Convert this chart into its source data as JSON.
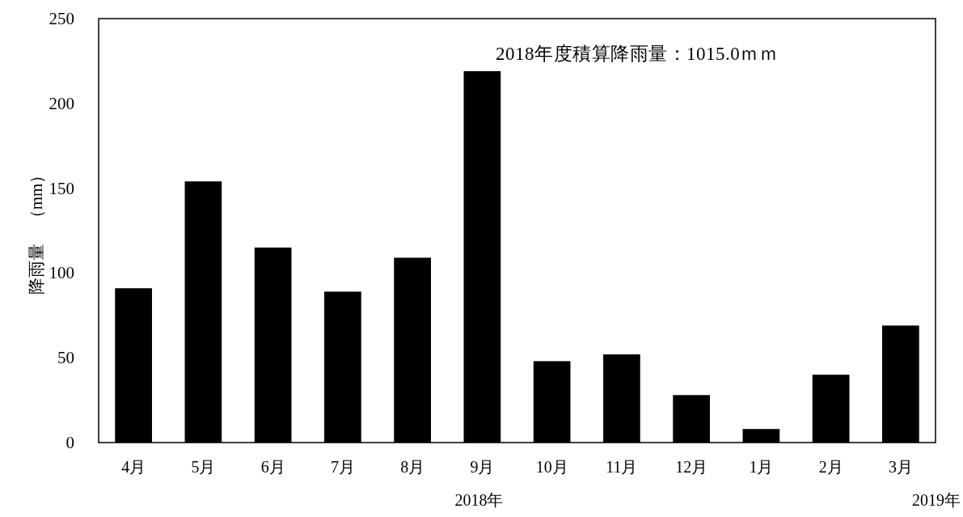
{
  "chart_data": {
    "type": "bar",
    "ylabel": "降雨量　（mm）",
    "categories": [
      "4月",
      "5月",
      "6月",
      "7月",
      "8月",
      "9月",
      "10月",
      "11月",
      "12月",
      "1月",
      "2月",
      "3月"
    ],
    "values": [
      91,
      154,
      115,
      89,
      109,
      219,
      48,
      52,
      28,
      8,
      40,
      69
    ],
    "color": "#000000",
    "ylim": [
      0,
      250
    ],
    "yticks": [
      0,
      50,
      100,
      150,
      200,
      250
    ],
    "annotations": [
      "2018年度積算降雨量：1015.0ｍｍ",
      "2018年",
      "2019年"
    ]
  }
}
